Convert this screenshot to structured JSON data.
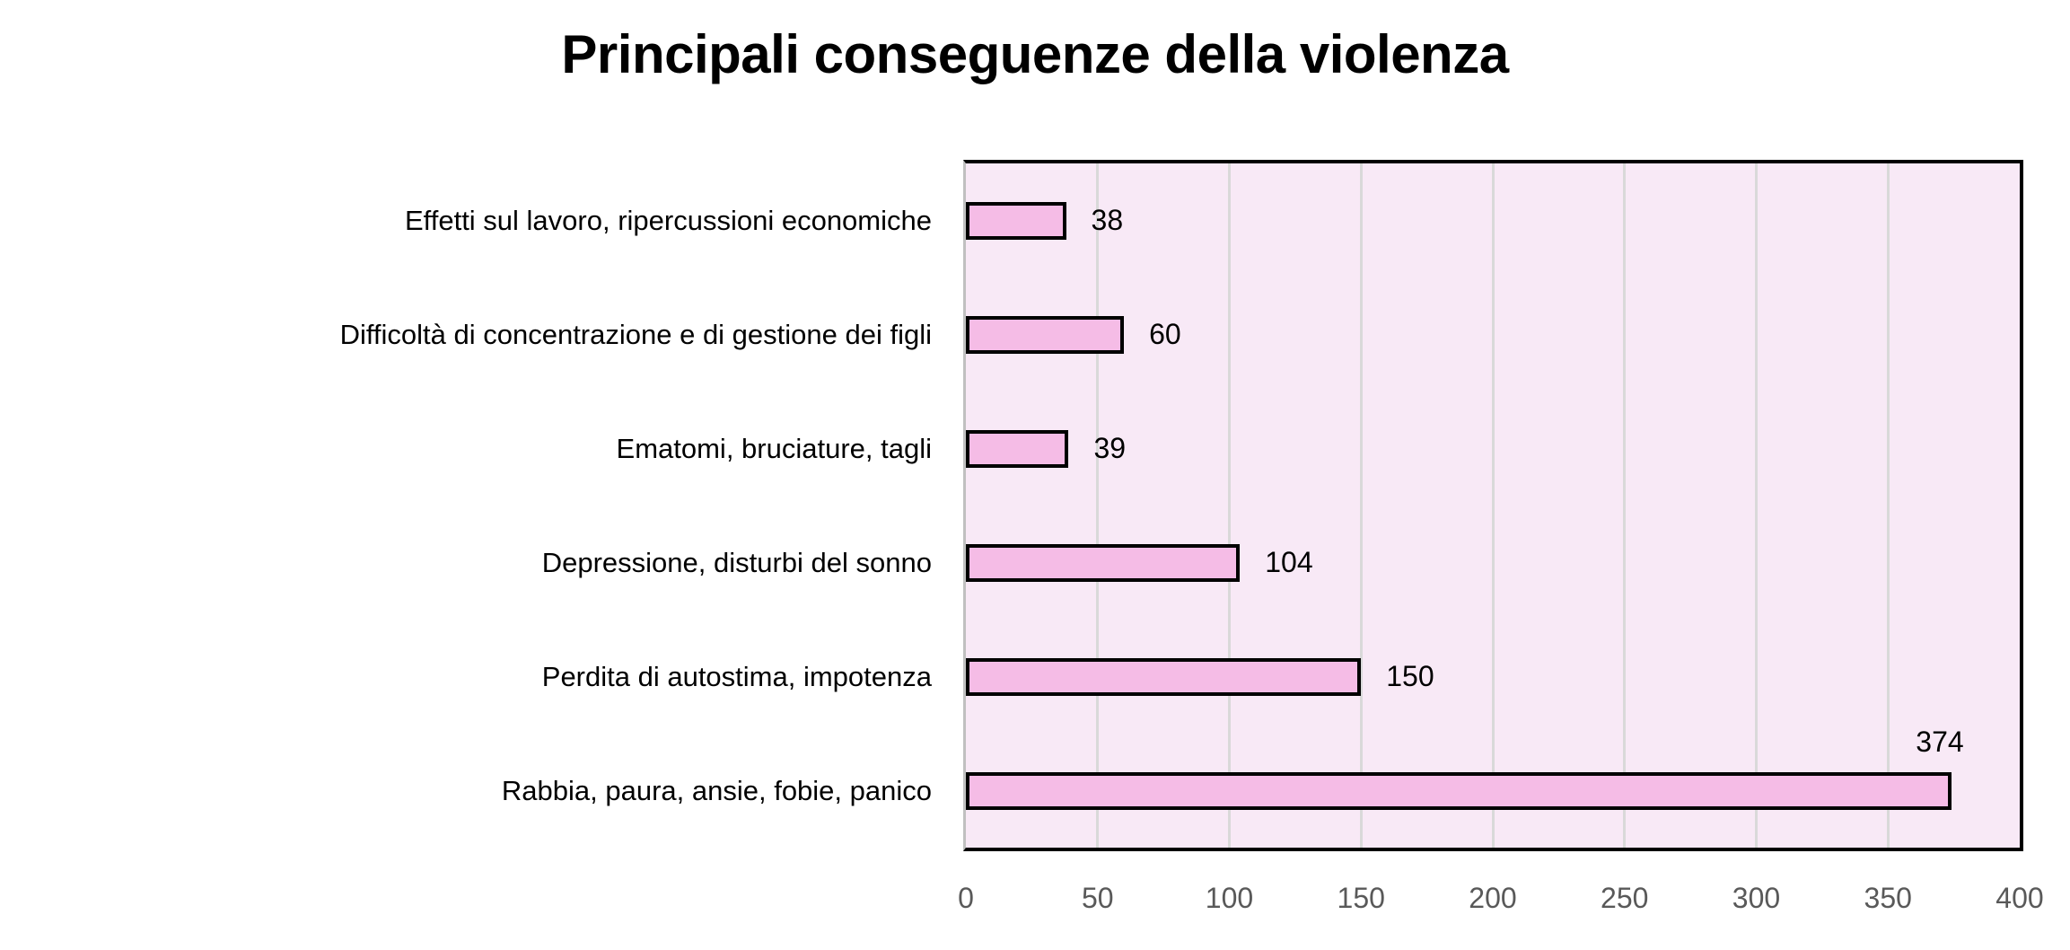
{
  "chart_data": {
    "type": "bar",
    "orientation": "horizontal",
    "title": "Principali conseguenze della violenza",
    "categories": [
      "Effetti sul lavoro, ripercussioni economiche",
      "Difficoltà di concentrazione e di gestione dei figli",
      "Ematomi, bruciature, tagli",
      "Depressione, disturbi del sonno",
      "Perdita di autostima, impotenza",
      "Rabbia, paura, ansie, fobie, panico"
    ],
    "values": [
      38,
      60,
      39,
      104,
      150,
      374
    ],
    "data_labels": [
      38,
      60,
      39,
      104,
      150,
      374
    ],
    "xlabel": "",
    "ylabel": "",
    "xlim": [
      0,
      400
    ],
    "xticks": [
      0,
      50,
      100,
      150,
      200,
      250,
      300,
      350,
      400
    ],
    "grid": true,
    "legend": false,
    "style": {
      "page_background": "#ffffff",
      "plot_background": "#f8e9f6",
      "bar_fill": "#f5bce6",
      "bar_border": "#000000",
      "gridline": "#d9d9d9",
      "axis_line": "#c0c0c0",
      "title_color": "#000000",
      "category_label_color": "#000000",
      "value_label_color": "#000000",
      "tick_label_color": "#595959",
      "leader_line": "#a6a6a6"
    }
  }
}
